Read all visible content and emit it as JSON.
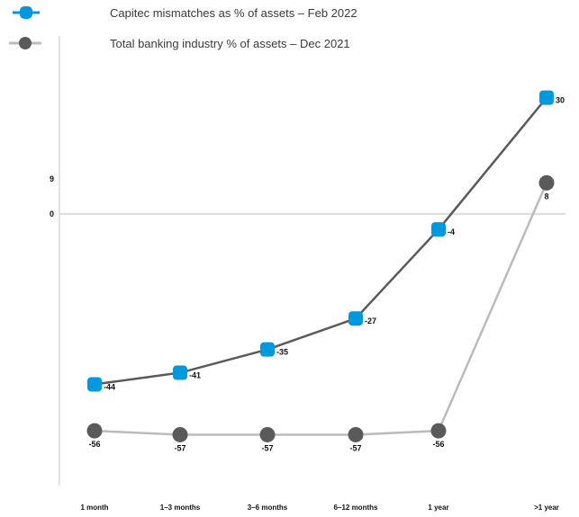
{
  "chart_data": {
    "type": "line",
    "categories": [
      "1 month",
      "1–3 months",
      "3–6 months",
      "6–12 months",
      "1 year",
      ">1 year"
    ],
    "series": [
      {
        "name": "Capitec mismatches as % of assets – Feb 2022",
        "color": "#0099dd",
        "line_color": "#5a5a5a",
        "marker": "square",
        "values": [
          -44,
          -41,
          -35,
          -27,
          -4,
          30
        ]
      },
      {
        "name": "Total banking industry % of assets – Dec 2021",
        "color": "#5a5a5a",
        "line_color": "#bbbbbb",
        "marker": "circle",
        "values": [
          -56,
          -57,
          -57,
          -57,
          -56,
          8
        ]
      }
    ],
    "y_ticks": [
      9,
      0
    ],
    "ylim": [
      -62,
      32
    ],
    "grid": false,
    "zero_line": true,
    "legend_position": "top-left"
  }
}
